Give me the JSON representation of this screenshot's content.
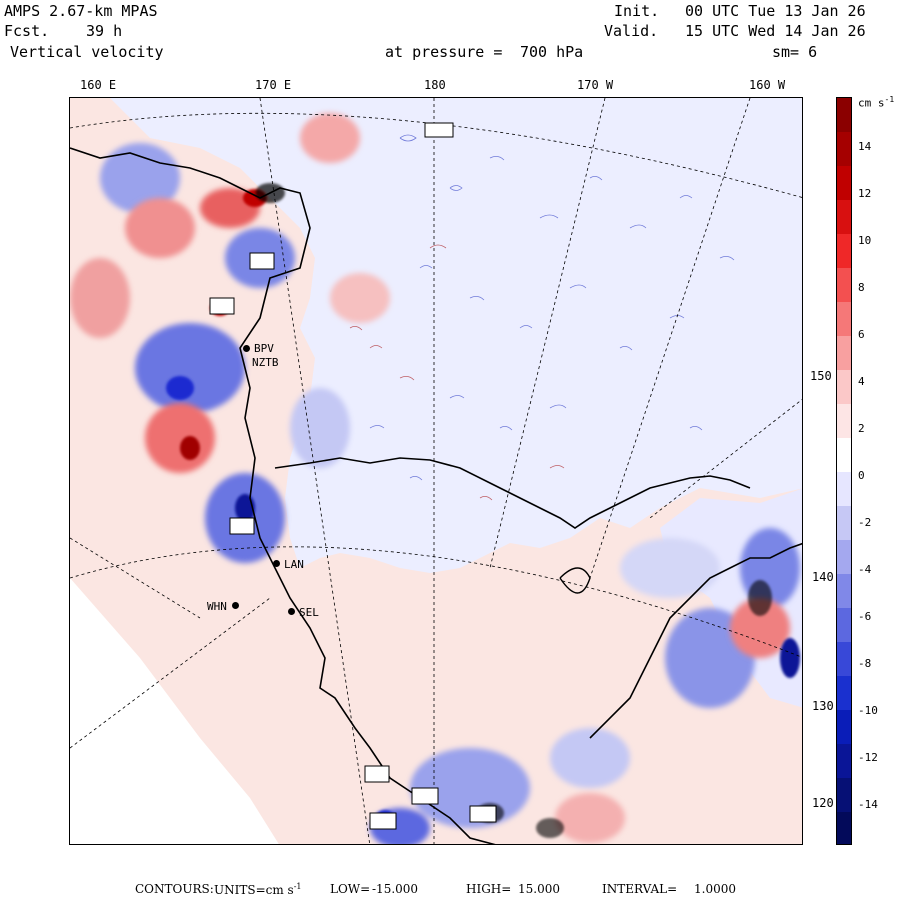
{
  "header": {
    "model": "AMPS 2.67-km MPAS",
    "forecast_label": "Fcst.",
    "forecast_value": "39 h",
    "field": "Vertical velocity",
    "init_label": "Init.",
    "init_value": "00 UTC Tue 13 Jan 26",
    "valid_label": "Valid.",
    "valid_value": "15 UTC Wed 14 Jan 26",
    "pressure_label": "at pressure =",
    "pressure_value": "700 hPa",
    "smoothing": "sm= 6"
  },
  "longitude_ticks": [
    "160 E",
    "170 E",
    "180",
    "170 W",
    "160 W"
  ],
  "latitude_ticks": [
    "150 W",
    "140 W",
    "130 W",
    "120 W"
  ],
  "stations": [
    "BPV",
    "NZTB",
    "LAN",
    "WHN",
    "SEL"
  ],
  "colorbar": {
    "unit": "cm s",
    "unit_exponent": "-1",
    "labels": [
      "14",
      "12",
      "10",
      "8",
      "6",
      "4",
      "2",
      "0",
      "-2",
      "-4",
      "-6",
      "-8",
      "-10",
      "-12",
      "-14"
    ],
    "colors": [
      "#8b0000",
      "#a50000",
      "#c00000",
      "#d81010",
      "#ef2828",
      "#f35050",
      "#f57878",
      "#f8a0a0",
      "#fbc8c8",
      "#fde5e5",
      "#ffffff",
      "#e6e6ff",
      "#c6c8f5",
      "#a4a8ef",
      "#8088e8",
      "#5c68e0",
      "#3848d8",
      "#1a30cf",
      "#0a1db8",
      "#0a1597",
      "#061075",
      "#030a5a"
    ]
  },
  "footer": {
    "contours_label": "CONTOURS:",
    "units_label": "UNITS=cm s",
    "units_exponent": "-1",
    "low_label": "LOW=",
    "low_value": "-15.000",
    "high_label": "HIGH=",
    "high_value": "15.000",
    "interval_label": "INTERVAL=",
    "interval_value": "1.0000"
  },
  "map_colors": {
    "ocean": "#eef0ff",
    "pink": "#fbe0e0",
    "blue_light": "#c9cdf5",
    "blue": "#6070e0",
    "red": "#e85050",
    "dark_red": "#a00000",
    "dark_blue": "#1a2ad0"
  }
}
